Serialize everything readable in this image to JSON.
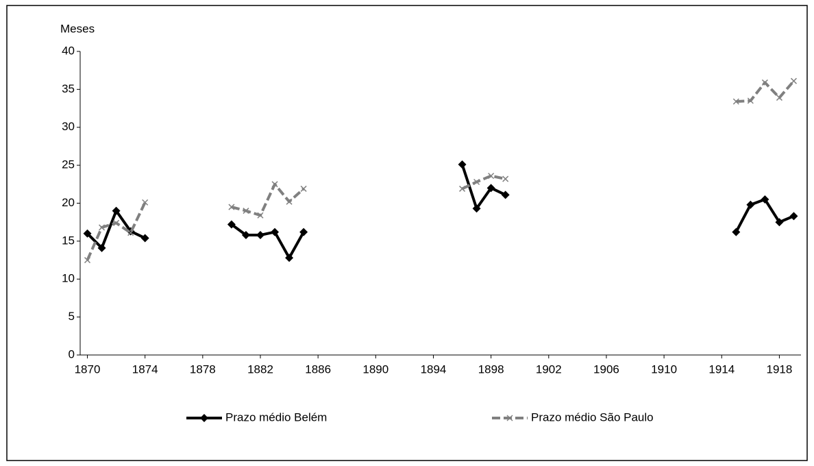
{
  "chart_data": {
    "type": "line",
    "y_label": "Meses",
    "x": [
      1870,
      1871,
      1872,
      1873,
      1874,
      1875,
      1876,
      1877,
      1878,
      1879,
      1880,
      1881,
      1882,
      1883,
      1884,
      1885,
      1886,
      1887,
      1888,
      1889,
      1890,
      1891,
      1892,
      1893,
      1894,
      1895,
      1896,
      1897,
      1898,
      1899,
      1900,
      1901,
      1902,
      1903,
      1904,
      1905,
      1906,
      1907,
      1908,
      1909,
      1910,
      1911,
      1912,
      1913,
      1914,
      1915,
      1916,
      1917,
      1918,
      1919
    ],
    "series": [
      {
        "name": "Prazo médio Belém",
        "color": "#000000",
        "marker": "diamond",
        "dash": false,
        "values": [
          16.0,
          14.1,
          19.0,
          16.3,
          15.4,
          null,
          null,
          null,
          null,
          null,
          17.2,
          15.8,
          15.8,
          16.2,
          12.8,
          16.2,
          null,
          null,
          null,
          null,
          null,
          null,
          null,
          null,
          null,
          null,
          25.1,
          19.3,
          22.0,
          21.1,
          null,
          null,
          null,
          null,
          null,
          null,
          null,
          null,
          null,
          null,
          null,
          null,
          null,
          null,
          null,
          16.2,
          19.8,
          20.5,
          17.5,
          18.3
        ]
      },
      {
        "name": "Prazo médio São Paulo",
        "color": "#808080",
        "marker": "x",
        "dash": true,
        "values": [
          12.5,
          16.8,
          17.4,
          16.1,
          20.1,
          null,
          null,
          null,
          null,
          null,
          19.5,
          19.0,
          18.4,
          22.5,
          20.2,
          21.9,
          null,
          null,
          null,
          null,
          null,
          null,
          null,
          null,
          null,
          null,
          21.9,
          22.8,
          23.6,
          23.2,
          null,
          null,
          null,
          null,
          null,
          null,
          null,
          null,
          null,
          null,
          null,
          null,
          null,
          null,
          null,
          33.4,
          33.5,
          35.9,
          33.9,
          36.1
        ]
      }
    ],
    "xlim": [
      1869.5,
      1919.5
    ],
    "xticks": [
      1870,
      1874,
      1878,
      1882,
      1886,
      1890,
      1894,
      1898,
      1902,
      1906,
      1910,
      1914,
      1918
    ],
    "ylim": [
      0,
      40
    ],
    "yticks": [
      0,
      5,
      10,
      15,
      20,
      25,
      30,
      35,
      40
    ],
    "legend": "bottom"
  }
}
